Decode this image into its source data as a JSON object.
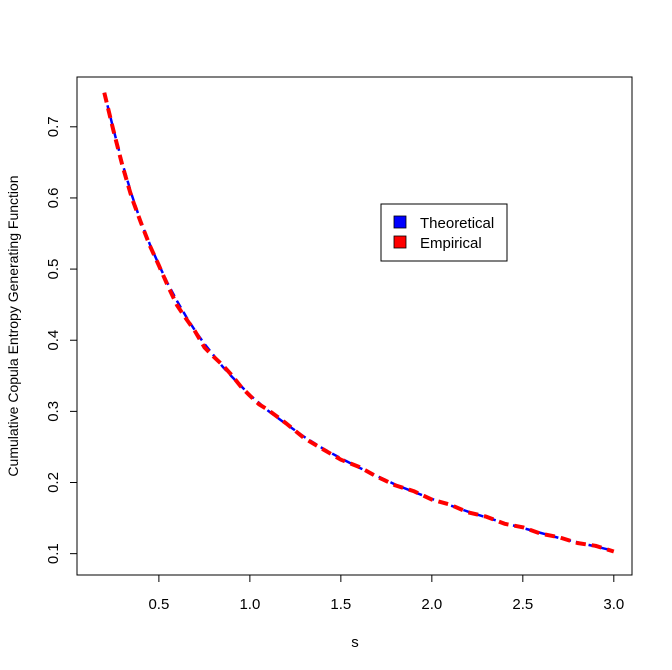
{
  "chart_data": {
    "type": "line",
    "title": "",
    "xlabel": "s",
    "ylabel": "Cumulative Copula Entropy Generating Function",
    "xlim": [
      0.05,
      3.1
    ],
    "ylim": [
      0.07,
      0.77
    ],
    "x_ticks": [
      0.5,
      1.0,
      1.5,
      2.0,
      2.5,
      3.0
    ],
    "x_tick_labels": [
      "0.5",
      "1.0",
      "1.5",
      "2.0",
      "2.5",
      "3.0"
    ],
    "y_ticks": [
      0.1,
      0.2,
      0.3,
      0.4,
      0.5,
      0.6,
      0.7
    ],
    "y_tick_labels": [
      "0.1",
      "0.2",
      "0.3",
      "0.4",
      "0.5",
      "0.6",
      "0.7"
    ],
    "grid": false,
    "legend_position": "upper-right of center",
    "legend": [
      {
        "label": "Theoretical",
        "color": "#0000FF"
      },
      {
        "label": "Empirical",
        "color": "#FF0000"
      }
    ],
    "series": [
      {
        "name": "Theoretical",
        "color": "#0000FF",
        "line_style": "dashed",
        "x": [
          0.2,
          0.25,
          0.3,
          0.35,
          0.4,
          0.45,
          0.5,
          0.55,
          0.6,
          0.65,
          0.7,
          0.75,
          0.8,
          0.85,
          0.9,
          0.95,
          1.0,
          1.05,
          1.1,
          1.2,
          1.3,
          1.4,
          1.5,
          1.6,
          1.7,
          1.8,
          1.9,
          2.0,
          2.1,
          2.2,
          2.3,
          2.4,
          2.5,
          2.6,
          2.7,
          2.8,
          2.9,
          3.0
        ],
        "y": [
          0.748,
          0.697,
          0.648,
          0.605,
          0.567,
          0.535,
          0.506,
          0.479,
          0.455,
          0.433,
          0.413,
          0.395,
          0.379,
          0.363,
          0.349,
          0.336,
          0.323,
          0.312,
          0.301,
          0.282,
          0.264,
          0.248,
          0.234,
          0.221,
          0.209,
          0.197,
          0.187,
          0.177,
          0.168,
          0.159,
          0.151,
          0.143,
          0.136,
          0.129,
          0.122,
          0.116,
          0.11,
          0.104
        ]
      },
      {
        "name": "Empirical",
        "color": "#FF0000",
        "line_style": "dashed",
        "x": [
          0.2,
          0.25,
          0.3,
          0.35,
          0.4,
          0.45,
          0.5,
          0.55,
          0.6,
          0.65,
          0.7,
          0.75,
          0.8,
          0.85,
          0.9,
          0.95,
          1.0,
          1.05,
          1.1,
          1.2,
          1.3,
          1.4,
          1.5,
          1.6,
          1.7,
          1.8,
          1.9,
          2.0,
          2.1,
          2.2,
          2.3,
          2.4,
          2.5,
          2.6,
          2.7,
          2.8,
          2.9,
          3.0
        ],
        "y": [
          0.748,
          0.695,
          0.645,
          0.601,
          0.566,
          0.533,
          0.505,
          0.476,
          0.449,
          0.43,
          0.412,
          0.39,
          0.377,
          0.365,
          0.351,
          0.335,
          0.322,
          0.31,
          0.302,
          0.283,
          0.262,
          0.247,
          0.232,
          0.222,
          0.208,
          0.196,
          0.188,
          0.176,
          0.169,
          0.158,
          0.152,
          0.142,
          0.137,
          0.128,
          0.123,
          0.115,
          0.111,
          0.103
        ]
      }
    ]
  }
}
